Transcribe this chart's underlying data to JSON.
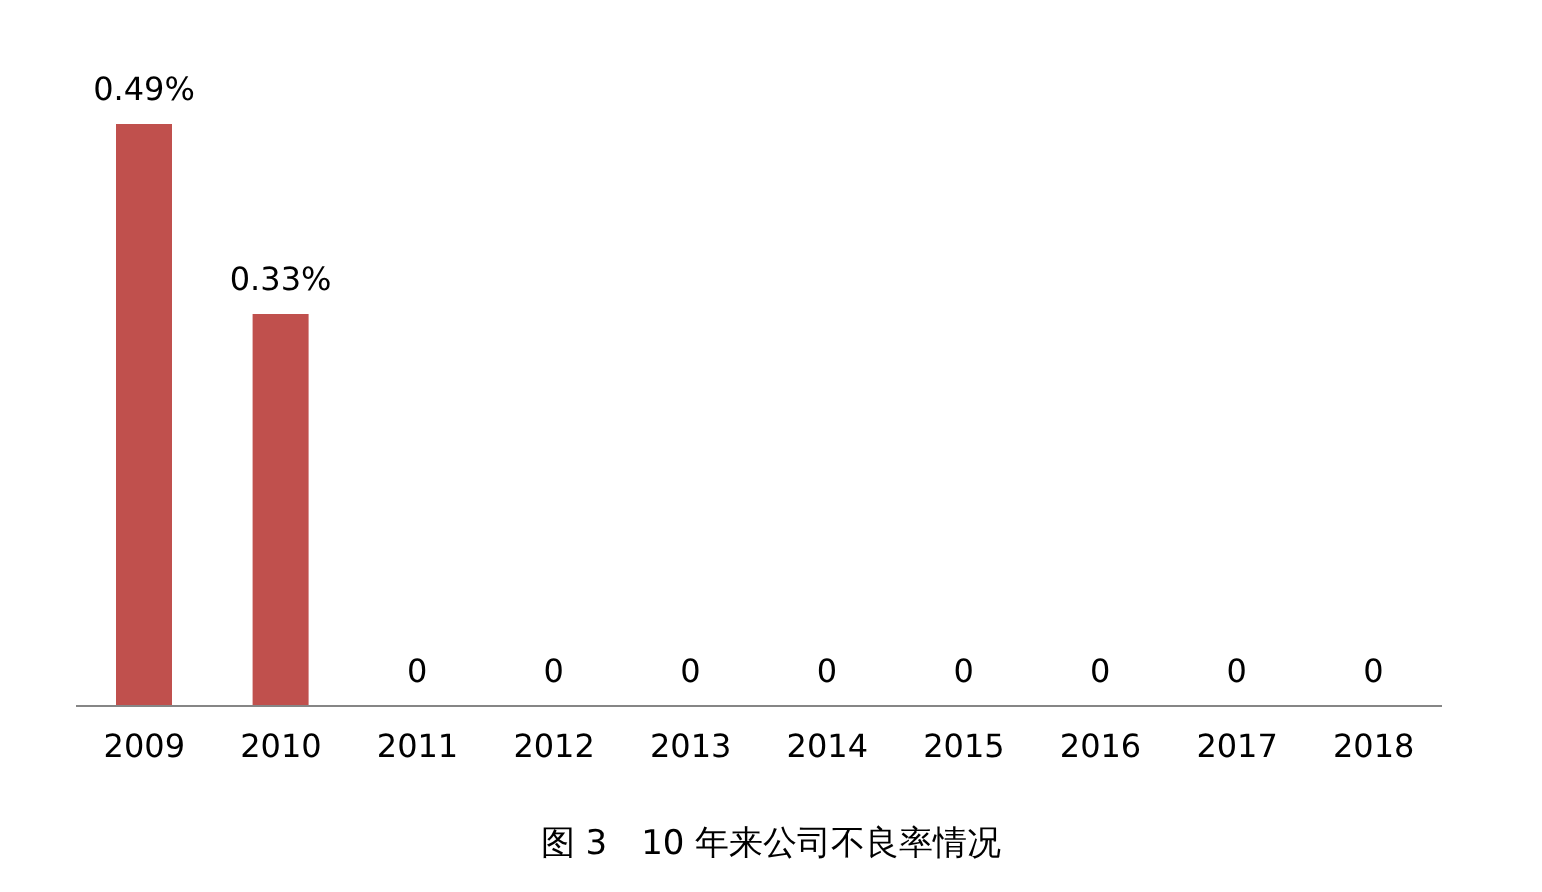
{
  "chart_data": {
    "type": "bar",
    "title": "图 3　10 年来公司不良率情况",
    "categories": [
      "2009",
      "2010",
      "2011",
      "2012",
      "2013",
      "2014",
      "2015",
      "2016",
      "2017",
      "2018"
    ],
    "values": [
      0.49,
      0.33,
      0,
      0,
      0,
      0,
      0,
      0,
      0,
      0
    ],
    "value_labels": [
      "0.49%",
      "0.33%",
      "0",
      "0",
      "0",
      "0",
      "0",
      "0",
      "0",
      "0"
    ],
    "color": "#c0504d"
  }
}
